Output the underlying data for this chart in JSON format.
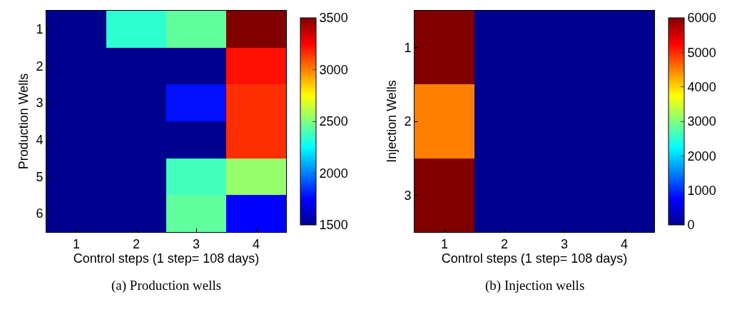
{
  "chart_data": [
    {
      "type": "heatmap",
      "xlabel": "Control steps (1 step= 108 days)",
      "ylabel": "Production Wells",
      "annotations": [
        "(a) Production wells"
      ],
      "categories": [
        "1",
        "2",
        "3",
        "4"
      ],
      "y_categories": [
        "1",
        "2",
        "3",
        "4",
        "5",
        "6"
      ],
      "cells": [
        [
          1500,
          2340,
          2440,
          3500
        ],
        [
          1500,
          1500,
          1500,
          3220
        ],
        [
          1500,
          1500,
          1780,
          3160
        ],
        [
          1500,
          1500,
          1500,
          3160
        ],
        [
          1500,
          1500,
          2380,
          2540
        ],
        [
          1500,
          1500,
          2440,
          1750
        ]
      ],
      "clim": [
        1500,
        3500
      ],
      "cticks": [
        1500,
        2000,
        2500,
        3000,
        3500
      ]
    },
    {
      "type": "heatmap",
      "xlabel": "Control steps (1 step= 108 days)",
      "ylabel": "Injection Wells",
      "annotations": [
        "(b) Injection wells"
      ],
      "categories": [
        "1",
        "2",
        "3",
        "4"
      ],
      "y_categories": [
        "1",
        "2",
        "3"
      ],
      "cells": [
        [
          6000,
          0,
          0,
          0
        ],
        [
          4500,
          0,
          0,
          0
        ],
        [
          6000,
          0,
          0,
          0
        ]
      ],
      "clim": [
        0,
        6000
      ],
      "cticks": [
        0,
        1000,
        2000,
        3000,
        4000,
        5000,
        6000
      ]
    }
  ]
}
